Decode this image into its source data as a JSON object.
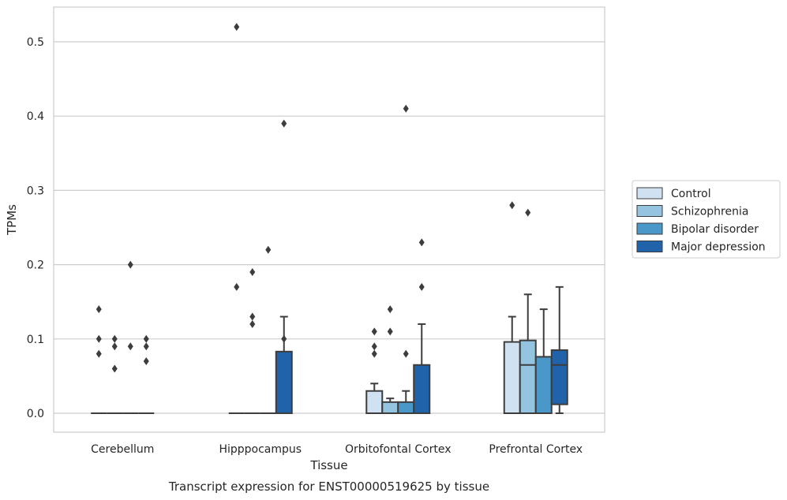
{
  "chart_data": {
    "type": "box",
    "title": "",
    "caption": "Transcript expression for ENST00000519625 by tissue",
    "xlabel": "Tissue",
    "ylabel": "TPMs",
    "ylim": [
      -0.025,
      0.545
    ],
    "yticks": [
      0.0,
      0.1,
      0.2,
      0.3,
      0.4,
      0.5
    ],
    "ytick_labels": [
      "0.0",
      "0.1",
      "0.2",
      "0.3",
      "0.4",
      "0.5"
    ],
    "grid": "horizontal",
    "legend_position": "right",
    "categories": [
      "Cerebellum",
      "Hipppocampus",
      "Orbitofontal Cortex",
      "Prefrontal Cortex"
    ],
    "series": [
      {
        "name": "Control",
        "color": "#d0e1f2",
        "boxes": [
          {
            "q1": 0,
            "median": 0,
            "q3": 0,
            "whisker_low": 0,
            "whisker_high": 0,
            "outliers": [
              0.14,
              0.1,
              0.08
            ]
          },
          {
            "q1": 0,
            "median": 0,
            "q3": 0,
            "whisker_low": 0,
            "whisker_high": 0,
            "outliers": [
              0.52,
              0.17
            ]
          },
          {
            "q1": 0,
            "median": 0,
            "q3": 0.03,
            "whisker_low": 0,
            "whisker_high": 0.04,
            "outliers": [
              0.11,
              0.09,
              0.08
            ]
          },
          {
            "q1": 0,
            "median": 0,
            "q3": 0.096,
            "whisker_low": 0,
            "whisker_high": 0.13,
            "outliers": [
              0.28
            ]
          }
        ]
      },
      {
        "name": "Schizophrenia",
        "color": "#94c4df",
        "boxes": [
          {
            "q1": 0,
            "median": 0,
            "q3": 0,
            "whisker_low": 0,
            "whisker_high": 0,
            "outliers": [
              0.1,
              0.09,
              0.06
            ]
          },
          {
            "q1": 0,
            "median": 0,
            "q3": 0,
            "whisker_low": 0,
            "whisker_high": 0,
            "outliers": [
              0.19,
              0.13,
              0.12
            ]
          },
          {
            "q1": 0,
            "median": 0,
            "q3": 0.015,
            "whisker_low": 0,
            "whisker_high": 0.02,
            "outliers": [
              0.14,
              0.11
            ]
          },
          {
            "q1": 0,
            "median": 0.065,
            "q3": 0.098,
            "whisker_low": 0,
            "whisker_high": 0.16,
            "outliers": [
              0.27
            ]
          }
        ]
      },
      {
        "name": "Bipolar disorder",
        "color": "#4a98c9",
        "boxes": [
          {
            "q1": 0,
            "median": 0,
            "q3": 0,
            "whisker_low": 0,
            "whisker_high": 0,
            "outliers": [
              0.2,
              0.09
            ]
          },
          {
            "q1": 0,
            "median": 0,
            "q3": 0,
            "whisker_low": 0,
            "whisker_high": 0,
            "outliers": [
              0.22
            ]
          },
          {
            "q1": 0,
            "median": 0,
            "q3": 0.015,
            "whisker_low": 0,
            "whisker_high": 0.03,
            "outliers": [
              0.41,
              0.08
            ]
          },
          {
            "q1": 0,
            "median": 0,
            "q3": 0.076,
            "whisker_low": 0,
            "whisker_high": 0.14,
            "outliers": []
          }
        ]
      },
      {
        "name": "Major depression",
        "color": "#2163aa",
        "boxes": [
          {
            "q1": 0,
            "median": 0,
            "q3": 0,
            "whisker_low": 0,
            "whisker_high": 0,
            "outliers": [
              0.1,
              0.09,
              0.07
            ]
          },
          {
            "q1": 0,
            "median": 0,
            "q3": 0.083,
            "whisker_low": 0,
            "whisker_high": 0.13,
            "outliers": [
              0.39,
              0.1
            ]
          },
          {
            "q1": 0,
            "median": 0,
            "q3": 0.065,
            "whisker_low": 0,
            "whisker_high": 0.12,
            "outliers": [
              0.23,
              0.17
            ]
          },
          {
            "q1": 0.012,
            "median": 0.065,
            "q3": 0.085,
            "whisker_low": 0,
            "whisker_high": 0.17,
            "outliers": []
          }
        ]
      }
    ]
  }
}
